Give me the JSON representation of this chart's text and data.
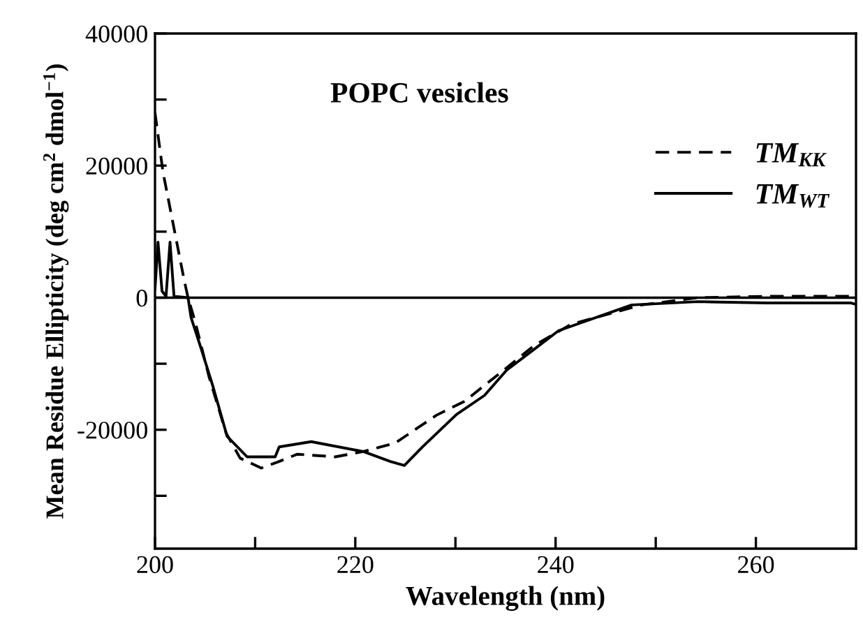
{
  "chart_data": {
    "type": "line",
    "xlabel": "Wavelength (nm)",
    "ylabel": "Mean Residue Ellipticity (deg cm$^{2}$ dmol$^{−1}$)",
    "annotations": [
      "POPC vesicles"
    ],
    "xlim": [
      200,
      270
    ],
    "xticks": [
      200,
      {
        "value": 210,
        "label": null
      },
      220,
      {
        "value": 230,
        "label": null
      },
      240,
      {
        "value": 250,
        "label": null
      },
      260
    ],
    "ylim": [
      -38000,
      40000
    ],
    "yticks": [
      {
        "value": -30000,
        "label": null
      },
      -20000,
      {
        "value": -10000,
        "label": null
      },
      0,
      {
        "value": 10000,
        "label": null
      },
      20000,
      {
        "value": 30000,
        "label": null
      },
      40000
    ],
    "grid": false,
    "legend": "top right",
    "ref_lines": [
      {
        "axis": "y",
        "value": 0,
        "color": "#000000",
        "line_style": "solid"
      }
    ],
    "series": [
      {
        "name": "TM$_{KK}$",
        "color": "#000000",
        "line_style": "dashed",
        "x": [
          200,
          200.8,
          202.9,
          203.3,
          204,
          205.4,
          207.1,
          208.5,
          210.6,
          212.4,
          214.2,
          218,
          220.8,
          224,
          228.1,
          230.9,
          234.3,
          237.9,
          241.6,
          248.6,
          254.2,
          261,
          269.5,
          270
        ],
        "values": [
          28000,
          19000,
          2750,
          0,
          -3600,
          -12000,
          -20500,
          -24300,
          -25800,
          -24800,
          -23700,
          -24100,
          -23300,
          -22000,
          -17800,
          -15700,
          -11600,
          -7200,
          -4000,
          -1100,
          0,
          200,
          200,
          0
        ]
      },
      {
        "name": "TM$_{WT}$",
        "color": "#000000",
        "line_style": "solid",
        "x": [
          200,
          200.3,
          200.7,
          201.1,
          201.5,
          201.9,
          203.3,
          203.6,
          204.5,
          205.8,
          207.2,
          209.2,
          212,
          212.4,
          215.6,
          220.8,
          223.5,
          224.9,
          226.7,
          230.1,
          232.9,
          235.1,
          240.3,
          247.6,
          254.2,
          261.1,
          269.5,
          270
        ],
        "values": [
          1300,
          8400,
          1000,
          200,
          8400,
          200,
          0,
          -3000,
          -7200,
          -13500,
          -21000,
          -24100,
          -24100,
          -22600,
          -21800,
          -23300,
          -24800,
          -25400,
          -22600,
          -17700,
          -14800,
          -11000,
          -5000,
          -1100,
          -600,
          -800,
          -800,
          -1000
        ]
      }
    ]
  }
}
